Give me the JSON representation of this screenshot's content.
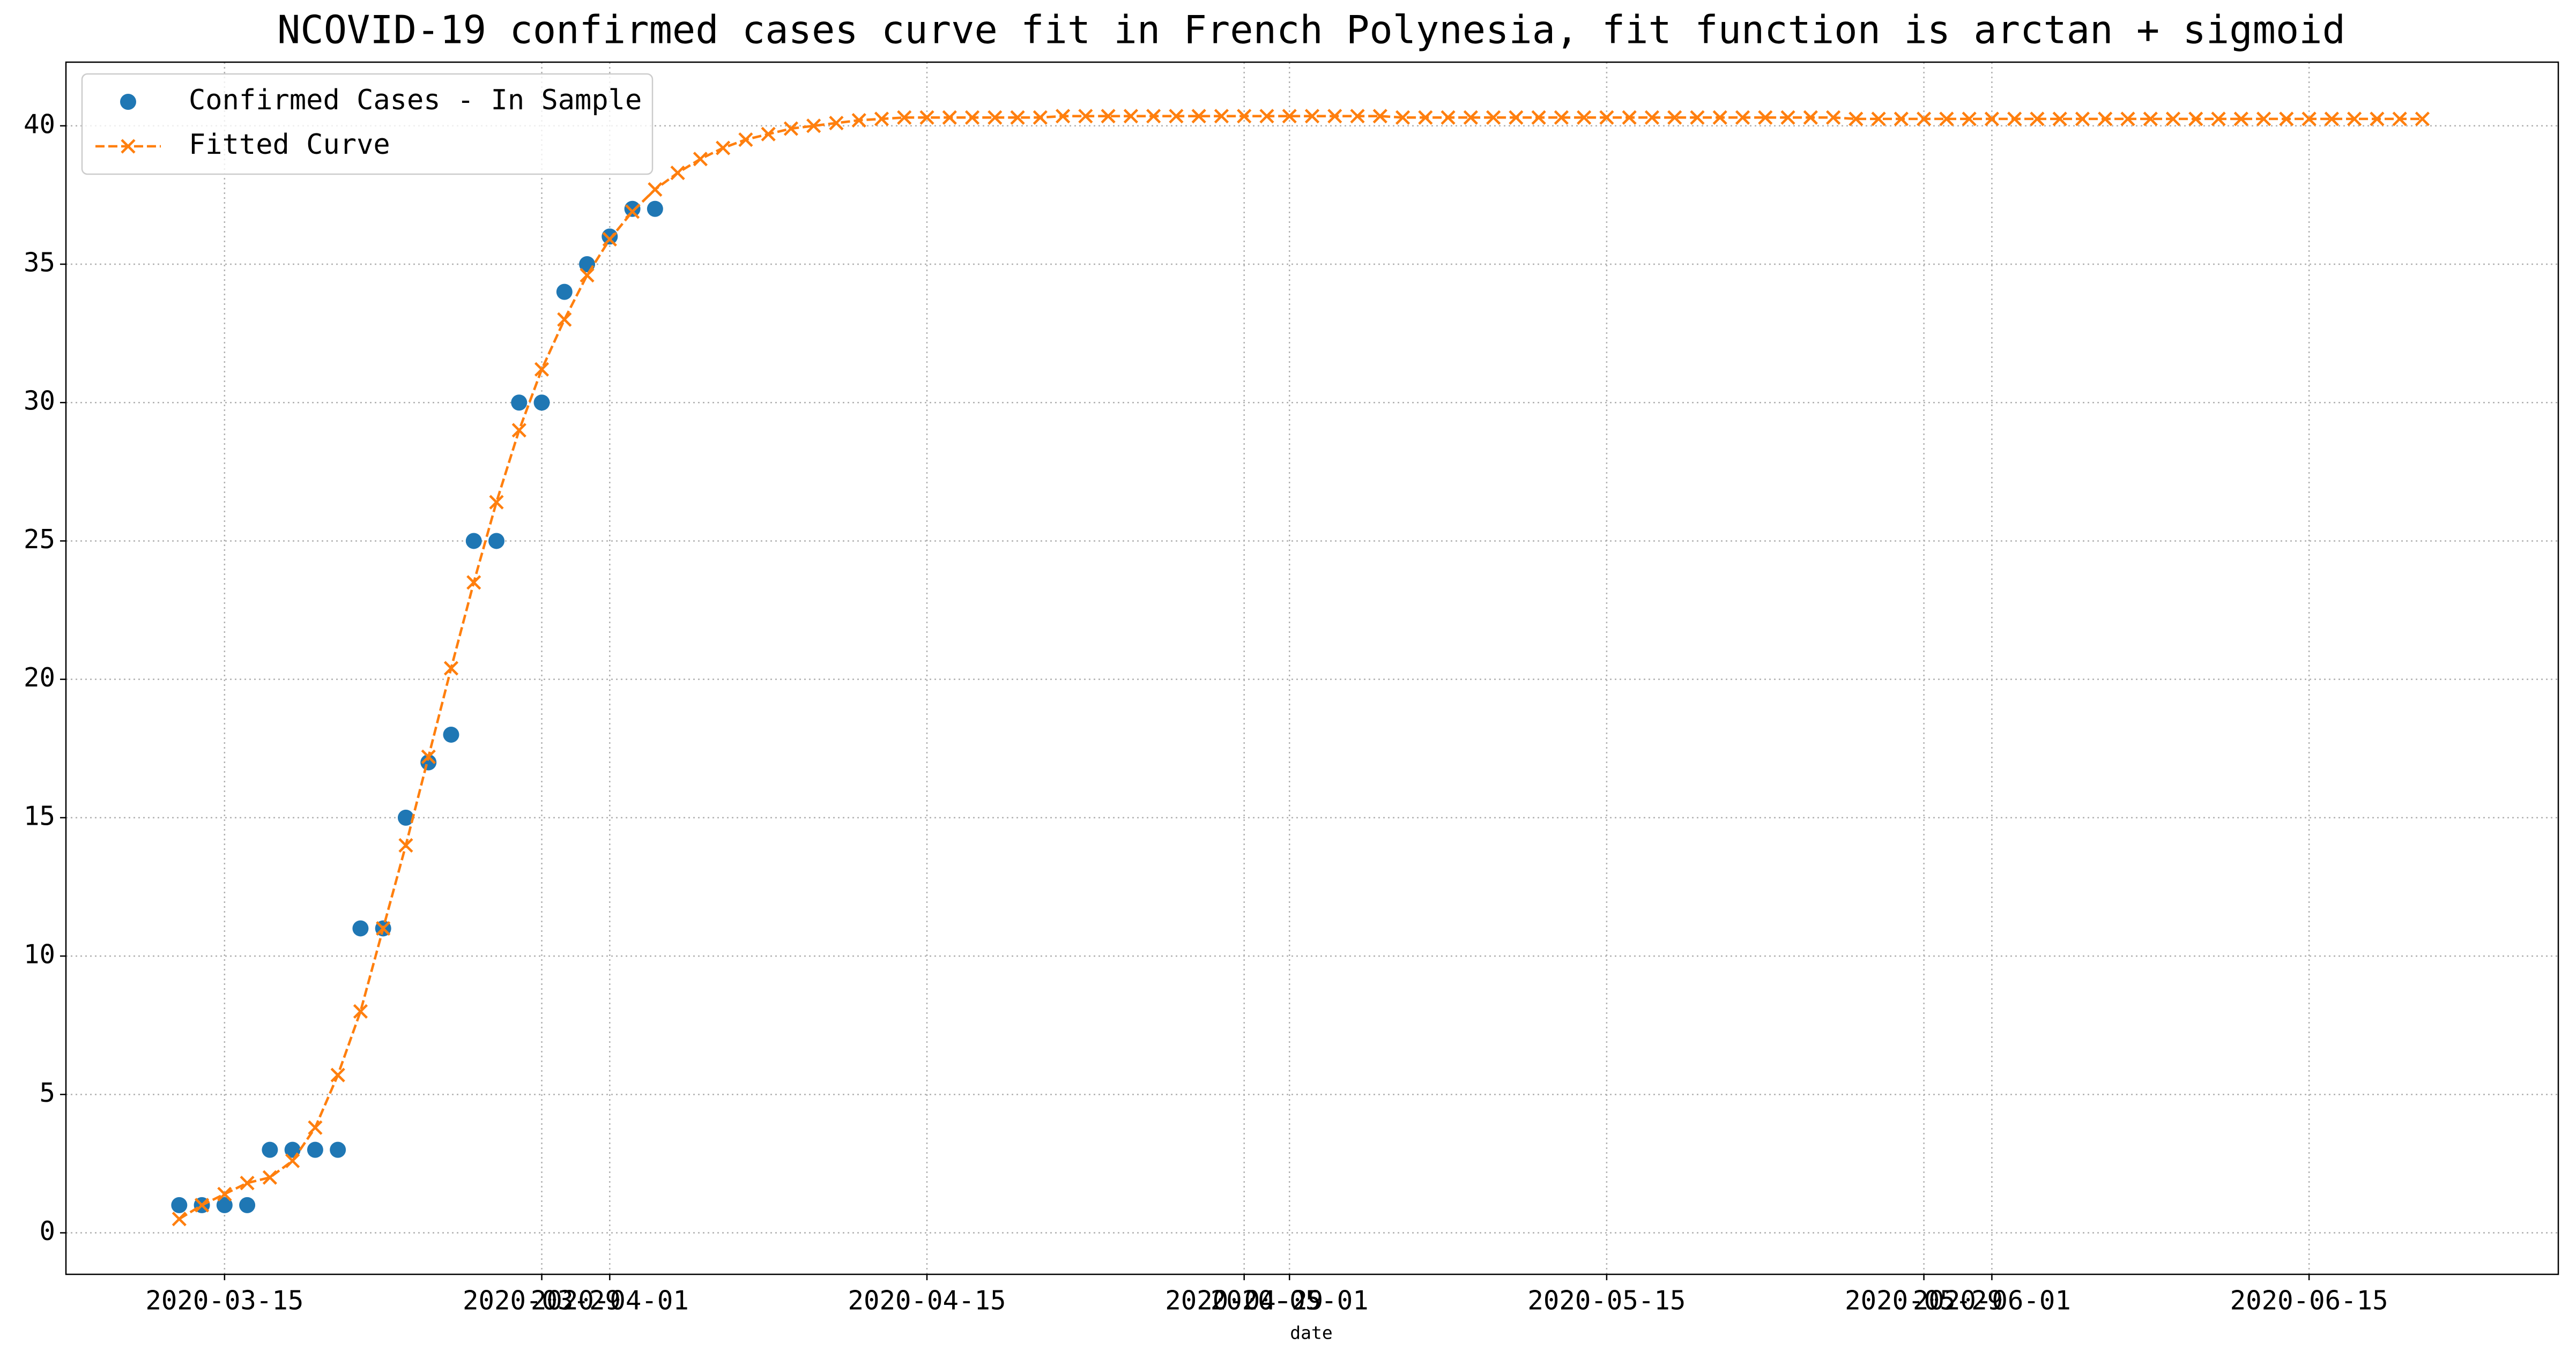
{
  "chart_data": {
    "type": "line",
    "title": "NCOVID-19 confirmed cases curve fit in French Polynesia, fit function is arctan + sigmoid",
    "xlabel": "date",
    "x": [
      "2020-03-13",
      "2020-03-14",
      "2020-03-15",
      "2020-03-16",
      "2020-03-17",
      "2020-03-18",
      "2020-03-19",
      "2020-03-20",
      "2020-03-21",
      "2020-03-22",
      "2020-03-23",
      "2020-03-24",
      "2020-03-25",
      "2020-03-26",
      "2020-03-27",
      "2020-03-28",
      "2020-03-29",
      "2020-03-30",
      "2020-03-31",
      "2020-04-01",
      "2020-04-02",
      "2020-04-03",
      "2020-04-04",
      "2020-04-05",
      "2020-04-06",
      "2020-04-07",
      "2020-04-08",
      "2020-04-09",
      "2020-04-10",
      "2020-04-11",
      "2020-04-12",
      "2020-04-13",
      "2020-04-14",
      "2020-04-15",
      "2020-04-16",
      "2020-04-17",
      "2020-04-18",
      "2020-04-19",
      "2020-04-20",
      "2020-04-21",
      "2020-04-22",
      "2020-04-23",
      "2020-04-24",
      "2020-04-25",
      "2020-04-26",
      "2020-04-27",
      "2020-04-28",
      "2020-04-29",
      "2020-04-30",
      "2020-05-01",
      "2020-05-02",
      "2020-05-03",
      "2020-05-04",
      "2020-05-05",
      "2020-05-06",
      "2020-05-07",
      "2020-05-08",
      "2020-05-09",
      "2020-05-10",
      "2020-05-11",
      "2020-05-12",
      "2020-05-13",
      "2020-05-14",
      "2020-05-15",
      "2020-05-16",
      "2020-05-17",
      "2020-05-18",
      "2020-05-19",
      "2020-05-20",
      "2020-05-21",
      "2020-05-22",
      "2020-05-23",
      "2020-05-24",
      "2020-05-25",
      "2020-05-26",
      "2020-05-27",
      "2020-05-28",
      "2020-05-29",
      "2020-05-30",
      "2020-05-31",
      "2020-06-01",
      "2020-06-02",
      "2020-06-03",
      "2020-06-04",
      "2020-06-05",
      "2020-06-06",
      "2020-06-07",
      "2020-06-08",
      "2020-06-09",
      "2020-06-10",
      "2020-06-11",
      "2020-06-12",
      "2020-06-13",
      "2020-06-14",
      "2020-06-15",
      "2020-06-16",
      "2020-06-17",
      "2020-06-18",
      "2020-06-19",
      "2020-06-20"
    ],
    "series": [
      {
        "name": "Confirmed Cases - In Sample",
        "color": "#1f77b4",
        "marker": "o",
        "linestyle": "none",
        "values": [
          1,
          1,
          1,
          1,
          3,
          3,
          3,
          3,
          11,
          11,
          15,
          17,
          18,
          25,
          25,
          30,
          30,
          34,
          35,
          36,
          37,
          37,
          null,
          null,
          null,
          null,
          null,
          null,
          null,
          null,
          null,
          null,
          null,
          null,
          null,
          null,
          null,
          null,
          null,
          null,
          null,
          null,
          null,
          null,
          null,
          null,
          null,
          null,
          null,
          null,
          null,
          null,
          null,
          null,
          null,
          null,
          null,
          null,
          null,
          null,
          null,
          null,
          null,
          null,
          null,
          null,
          null,
          null,
          null,
          null,
          null,
          null,
          null,
          null,
          null,
          null,
          null,
          null,
          null,
          null,
          null,
          null,
          null,
          null,
          null,
          null,
          null,
          null,
          null,
          null,
          null,
          null,
          null,
          null,
          null,
          null,
          null,
          null,
          null,
          null
        ]
      },
      {
        "name": "Fitted Curve",
        "color": "#ff7f0e",
        "marker": "x",
        "linestyle": "dashed",
        "values": [
          0.5,
          1.0,
          1.4,
          1.8,
          2.0,
          2.6,
          3.8,
          5.7,
          8.0,
          11.0,
          14.0,
          17.2,
          20.4,
          23.5,
          26.4,
          29.0,
          31.2,
          33.0,
          34.6,
          35.9,
          36.9,
          37.7,
          38.3,
          38.8,
          39.2,
          39.5,
          39.7,
          39.9,
          40.0,
          40.1,
          40.2,
          40.25,
          40.3,
          40.3,
          40.3,
          40.3,
          40.3,
          40.3,
          40.3,
          40.35,
          40.35,
          40.35,
          40.35,
          40.35,
          40.35,
          40.35,
          40.35,
          40.35,
          40.35,
          40.35,
          40.35,
          40.35,
          40.35,
          40.35,
          40.3,
          40.3,
          40.3,
          40.3,
          40.3,
          40.3,
          40.3,
          40.3,
          40.3,
          40.3,
          40.3,
          40.3,
          40.3,
          40.3,
          40.3,
          40.3,
          40.3,
          40.3,
          40.3,
          40.3,
          40.25,
          40.25,
          40.25,
          40.25,
          40.25,
          40.25,
          40.25,
          40.25,
          40.25,
          40.25,
          40.25,
          40.25,
          40.25,
          40.25,
          40.25,
          40.25,
          40.25,
          40.25,
          40.25,
          40.25,
          40.25,
          40.25,
          40.25,
          40.25,
          40.25,
          40.25
        ]
      }
    ],
    "xlim": [
      "2020-03-08",
      "2020-06-26"
    ],
    "xticks": [
      "2020-03-15",
      "2020-03-29",
      "2020-04-01",
      "2020-04-15",
      "2020-04-29",
      "2020-05-01",
      "2020-05-15",
      "2020-05-29",
      "2020-06-01",
      "2020-06-15"
    ],
    "ylim": [
      -1.5,
      42.3
    ],
    "yticks": [
      0,
      5,
      10,
      15,
      20,
      25,
      30,
      35,
      40
    ],
    "grid": true,
    "legend": "upper left"
  }
}
